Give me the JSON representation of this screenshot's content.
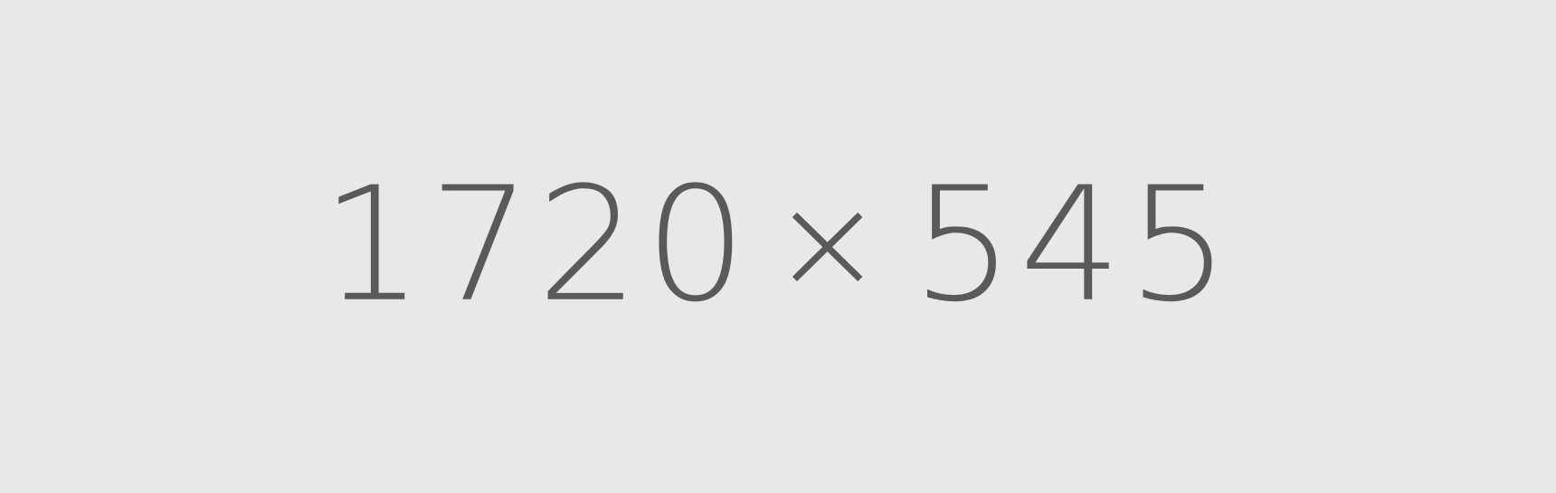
{
  "placeholder": {
    "width_text": "1720",
    "separator": "×",
    "height_text": "545"
  },
  "colors": {
    "background": "#e8e8e8",
    "text": "#5a5a5a"
  }
}
